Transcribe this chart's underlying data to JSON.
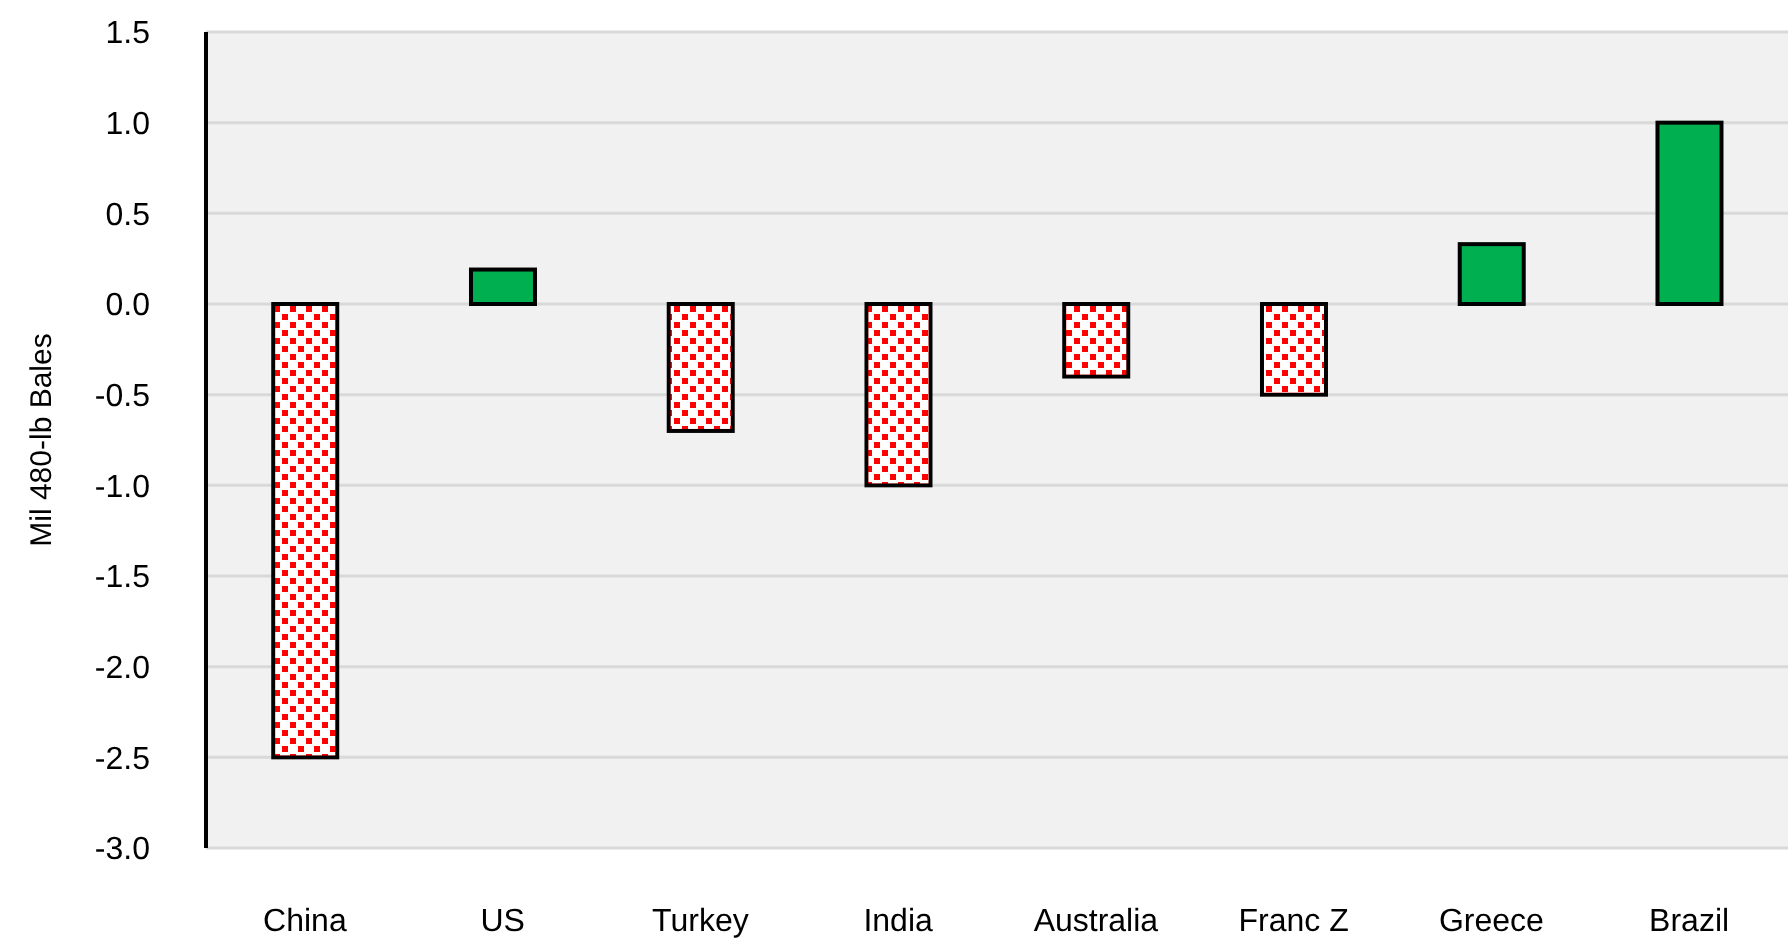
{
  "chart_data": {
    "type": "bar",
    "ylabel": "Mil 480-lb Bales",
    "categories": [
      "China",
      "US",
      "Turkey",
      "India",
      "Australia",
      "Franc Z",
      "Greece",
      "Brazil"
    ],
    "values": [
      -2.5,
      0.19,
      -0.7,
      -1.0,
      -0.4,
      -0.5,
      0.33,
      1.0
    ],
    "colors": [
      "#ff0000",
      "#00b050",
      "#ff0000",
      "#ff0000",
      "#ff0000",
      "#ff0000",
      "#00b050",
      "#00b050"
    ],
    "ylim": [
      -3.0,
      1.5
    ],
    "yticks": [
      {
        "value": -3.0,
        "label": "-3.0"
      },
      {
        "value": -2.5,
        "label": "-2.5"
      },
      {
        "value": -2.0,
        "label": "-2.0"
      },
      {
        "value": -1.5,
        "label": "-1.5"
      },
      {
        "value": -1.0,
        "label": "-1.0"
      },
      {
        "value": -0.5,
        "label": "-0.5"
      },
      {
        "value": 0,
        "label": "0.0"
      },
      {
        "value": 0.5,
        "label": "0.5"
      },
      {
        "value": 1.0,
        "label": "1.0"
      },
      {
        "value": 1.5,
        "label": "1.5"
      }
    ],
    "grid": "y"
  }
}
